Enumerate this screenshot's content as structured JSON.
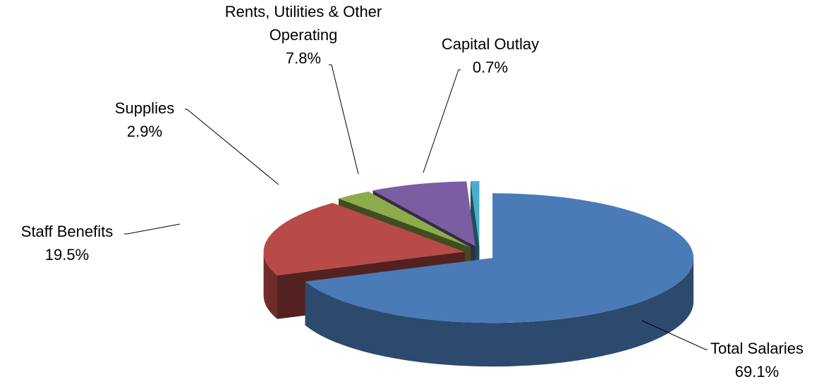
{
  "chart_data": {
    "type": "pie3d",
    "categories": [
      "Total Salaries",
      "Staff Benefits",
      "Supplies",
      "Rents, Utilities & Other Operating",
      "Capital Outlay"
    ],
    "values": [
      69.1,
      19.5,
      2.9,
      7.8,
      0.7
    ],
    "value_labels": [
      "69.1%",
      "19.5%",
      "2.9%",
      "7.8%",
      "0.7%"
    ],
    "colors": [
      "#4a7bb7",
      "#b84b47",
      "#8eab4c",
      "#7a5ea1",
      "#4aaecb"
    ]
  }
}
